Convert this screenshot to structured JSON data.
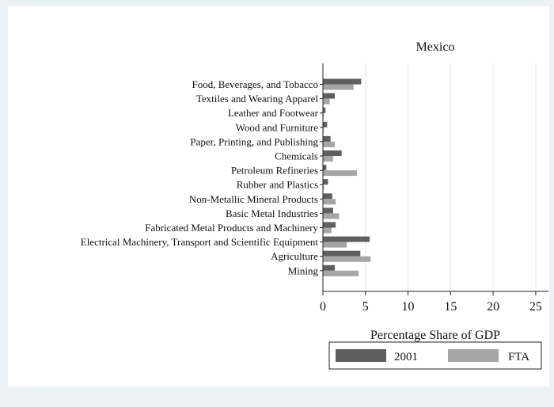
{
  "chart_data": {
    "type": "bar",
    "orientation": "horizontal",
    "title": "Mexico",
    "xlabel": "Percentage Share of GDP",
    "ylabel": "",
    "xlim": [
      0,
      26.5
    ],
    "xticks": [
      0,
      5,
      10,
      15,
      20,
      25
    ],
    "xtick_labels": [
      "0",
      "5",
      "10",
      "15",
      "20",
      "25"
    ],
    "grid": "vertical",
    "legend_position": "bottom-right",
    "categories": [
      "Food, Beverages, and Tobacco",
      "Textiles and Wearing Apparel",
      "Leather and Footwear",
      "Wood and Furniture",
      "Paper, Printing, and Publishing",
      "Chemicals",
      "Petroleum Refineries",
      "Rubber and Plastics",
      "Non-Metallic Mineral Products",
      "Basic Metal Industries",
      "Fabricated Metal Products and Machinery",
      "Electrical Machinery, Transport and Scientific Equipment",
      "Agriculture",
      "Mining"
    ],
    "series": [
      {
        "name": "2001",
        "color": "#5f5f5f",
        "values": [
          4.5,
          1.4,
          0.3,
          0.5,
          0.9,
          2.2,
          0.4,
          0.6,
          1.1,
          1.2,
          1.5,
          5.5,
          4.4,
          1.4
        ]
      },
      {
        "name": "FTA",
        "color": "#a5a5a5",
        "values": [
          3.6,
          0.8,
          0.1,
          0.1,
          1.4,
          1.2,
          4.0,
          0.1,
          1.5,
          1.9,
          1.0,
          2.8,
          5.6,
          4.2
        ]
      }
    ]
  }
}
